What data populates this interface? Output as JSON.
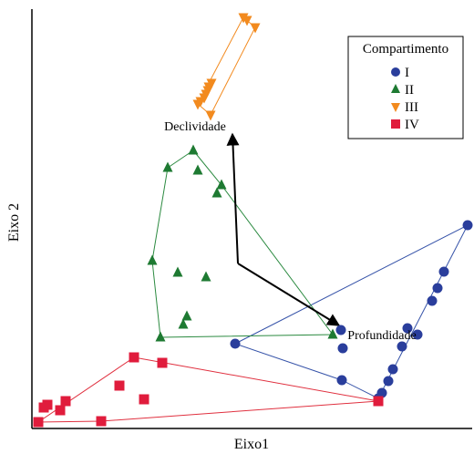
{
  "chart_data": {
    "type": "scatter",
    "xlabel": "Eixo1",
    "ylabel": "Eixo 2",
    "legend": {
      "title": "Compartimento",
      "position": "top-right"
    },
    "series": [
      {
        "name": "I",
        "marker": "circle",
        "color": "#2a3e9c",
        "hull_color": "#3552a8",
        "points": [
          [
            258,
            377
          ],
          [
            374,
            362
          ],
          [
            376,
            382
          ],
          [
            375,
            417
          ],
          [
            415,
            437
          ],
          [
            419,
            431
          ],
          [
            426,
            418
          ],
          [
            431,
            405
          ],
          [
            441,
            380
          ],
          [
            447,
            360
          ],
          [
            458,
            367
          ],
          [
            474,
            330
          ],
          [
            480,
            316
          ],
          [
            487,
            298
          ],
          [
            513,
            247
          ]
        ],
        "hull": [
          [
            258,
            377
          ],
          [
            513,
            247
          ],
          [
            415,
            437
          ],
          [
            375,
            417
          ]
        ]
      },
      {
        "name": "II",
        "marker": "triangle-up",
        "color": "#1e7a32",
        "hull_color": "#2b8a40",
        "points": [
          [
            212,
            165
          ],
          [
            184,
            184
          ],
          [
            217,
            187
          ],
          [
            243,
            203
          ],
          [
            238,
            212
          ],
          [
            167,
            286
          ],
          [
            195,
            299
          ],
          [
            226,
            304
          ],
          [
            205,
            347
          ],
          [
            201,
            356
          ],
          [
            176,
            370
          ],
          [
            365,
            367
          ]
        ],
        "hull": [
          [
            212,
            165
          ],
          [
            243,
            203
          ],
          [
            365,
            367
          ],
          [
            176,
            370
          ],
          [
            167,
            286
          ],
          [
            184,
            184
          ]
        ]
      },
      {
        "name": "III",
        "marker": "triangle-down",
        "color": "#f28a1e",
        "hull_color": "#f28a1e",
        "points": [
          [
            267,
            19
          ],
          [
            271,
            22
          ],
          [
            280,
            30
          ],
          [
            232,
            91
          ],
          [
            229,
            95
          ],
          [
            228,
            99
          ],
          [
            226,
            103
          ],
          [
            224,
            107
          ],
          [
            220,
            111
          ],
          [
            217,
            114
          ],
          [
            231,
            126
          ]
        ],
        "hull": [
          [
            267,
            19
          ],
          [
            280,
            30
          ],
          [
            231,
            126
          ],
          [
            217,
            114
          ]
        ]
      },
      {
        "name": "IV",
        "marker": "square",
        "color": "#e01c3c",
        "hull_color": "#e0303f",
        "points": [
          [
            147,
            392
          ],
          [
            178,
            398
          ],
          [
            131,
            423
          ],
          [
            158,
            438
          ],
          [
            72,
            440
          ],
          [
            52,
            444
          ],
          [
            48,
            447
          ],
          [
            66,
            450
          ],
          [
            111,
            462
          ],
          [
            42,
            463
          ],
          [
            415,
            440
          ]
        ],
        "hull": [
          [
            147,
            392
          ],
          [
            415,
            440
          ],
          [
            111,
            462
          ],
          [
            42,
            463
          ]
        ]
      }
    ],
    "vectors": {
      "origin": [
        261,
        289
      ],
      "items": [
        {
          "name": "Declividade",
          "tip": [
            255,
            147
          ],
          "label_anchor": [
            214,
            138
          ]
        },
        {
          "name": "Profundidade",
          "tip": [
            372,
            357
          ],
          "label_anchor": [
            419,
            367
          ]
        }
      ]
    }
  }
}
